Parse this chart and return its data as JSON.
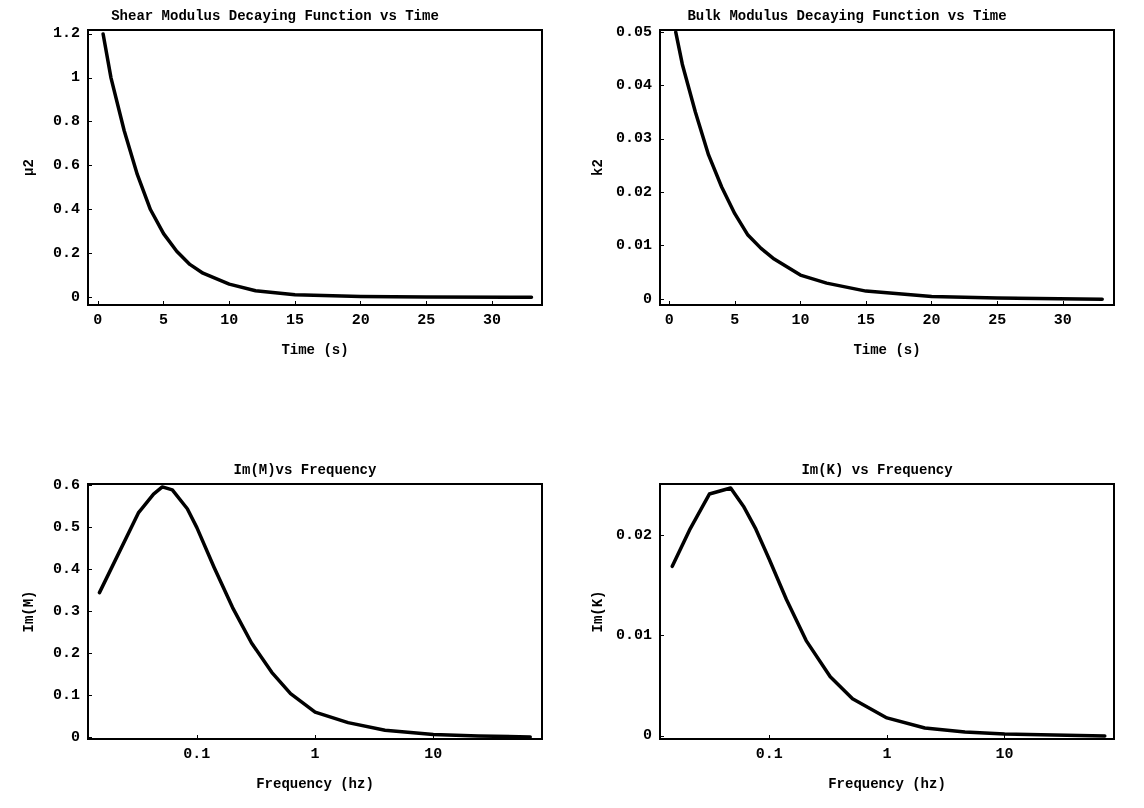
{
  "chart_data": [
    {
      "type": "line",
      "title": "Shear Modulus Decaying Function vs Time",
      "xlabel": "Time (s)",
      "ylabel": "μ2",
      "color": "#000000",
      "x": [
        0.4,
        1,
        2,
        3,
        4,
        5,
        6,
        7,
        8,
        10,
        12,
        15,
        20,
        25,
        33
      ],
      "values": [
        1.2,
        1.0,
        0.76,
        0.56,
        0.4,
        0.29,
        0.21,
        0.15,
        0.11,
        0.06,
        0.03,
        0.012,
        0.004,
        0.001,
        0
      ],
      "xlim": [
        -0.75,
        33.8
      ],
      "ylim": [
        -0.035,
        1.218
      ],
      "xticks": [
        0,
        5,
        10,
        15,
        20,
        25,
        30
      ],
      "yticks": [
        0,
        0.2,
        0.4,
        0.6,
        0.8,
        1,
        1.2
      ]
    },
    {
      "type": "line",
      "title": "Bulk Modulus Decaying Function vs Time",
      "xlabel": "Time (s)",
      "ylabel": "k2",
      "color": "#000000",
      "x": [
        0.5,
        1,
        2,
        3,
        4,
        5,
        6,
        7,
        8,
        10,
        12,
        15,
        20,
        25,
        33
      ],
      "values": [
        0.05,
        0.044,
        0.035,
        0.027,
        0.021,
        0.016,
        0.012,
        0.0095,
        0.0075,
        0.0045,
        0.003,
        0.0015,
        0.0005,
        0.0002,
        0
      ],
      "xlim": [
        -0.7,
        33.9
      ],
      "ylim": [
        -0.0011,
        0.0504
      ],
      "xticks": [
        0,
        5,
        10,
        15,
        20,
        25,
        30
      ],
      "yticks": [
        0,
        0.01,
        0.02,
        0.03,
        0.04,
        0.05
      ]
    },
    {
      "type": "line",
      "title": "Im(M)vs Frequency",
      "xlabel": "Frequency (hz)",
      "ylabel": "Im(M)",
      "color": "#000000",
      "log": "x",
      "x": [
        0.015,
        0.032,
        0.043,
        0.051,
        0.062,
        0.083,
        0.1,
        0.14,
        0.2,
        0.29,
        0.43,
        0.62,
        1,
        1.9,
        3.9,
        10,
        24,
        66
      ],
      "values": [
        0.345,
        0.535,
        0.58,
        0.597,
        0.59,
        0.545,
        0.5,
        0.405,
        0.31,
        0.225,
        0.155,
        0.104,
        0.06,
        0.035,
        0.017,
        0.007,
        0.003,
        0.001
      ],
      "xlim": [
        0.012,
        83
      ],
      "ylim": [
        -0.004,
        0.604
      ],
      "xticks": [
        0.1,
        1,
        10
      ],
      "yticks": [
        0,
        0.1,
        0.2,
        0.3,
        0.4,
        0.5,
        0.6
      ]
    },
    {
      "type": "line",
      "title": "Im(K) vs Frequency",
      "xlabel": "Frequency (hz)",
      "ylabel": "Im(K)",
      "color": "#000000",
      "log": "x",
      "x": [
        0.015,
        0.021,
        0.031,
        0.047,
        0.061,
        0.077,
        0.1,
        0.14,
        0.206,
        0.33,
        0.51,
        1,
        2.1,
        4.6,
        10,
        71
      ],
      "values": [
        0.0169,
        0.0205,
        0.0241,
        0.0247,
        0.0228,
        0.0206,
        0.0176,
        0.0136,
        0.0095,
        0.0059,
        0.0037,
        0.0018,
        0.0008,
        0.0004,
        0.0002,
        0
      ],
      "xlim": [
        0.0118,
        85
      ],
      "ylim": [
        -0.0003,
        0.0251
      ],
      "xticks": [
        0.1,
        1,
        10
      ],
      "yticks": [
        0,
        0.01,
        0.02
      ]
    }
  ]
}
